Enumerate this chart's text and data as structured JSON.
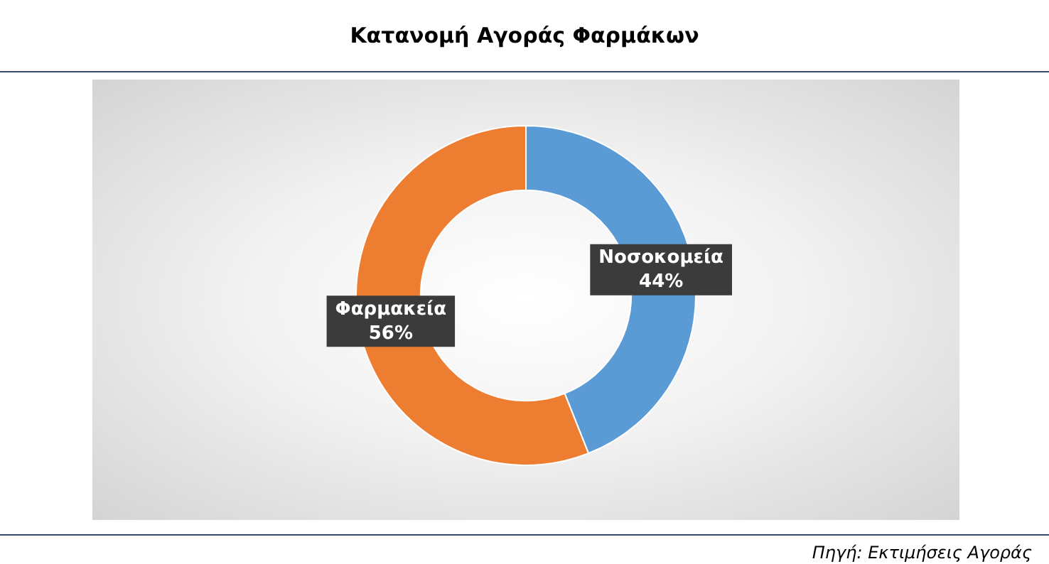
{
  "chart_data": {
    "type": "donut",
    "title": "Κατανομή Αγοράς Φαρμάκων",
    "categories": [
      "Νοσοκομεία",
      "Φαρμακεία"
    ],
    "values": [
      44,
      56
    ],
    "value_labels": [
      "44%",
      "56%"
    ],
    "colors": [
      "#5b9bd5",
      "#ed7d31"
    ],
    "legend": false,
    "annotations": [
      "Πηγή: Εκτιμήσεις Αγοράς"
    ]
  }
}
